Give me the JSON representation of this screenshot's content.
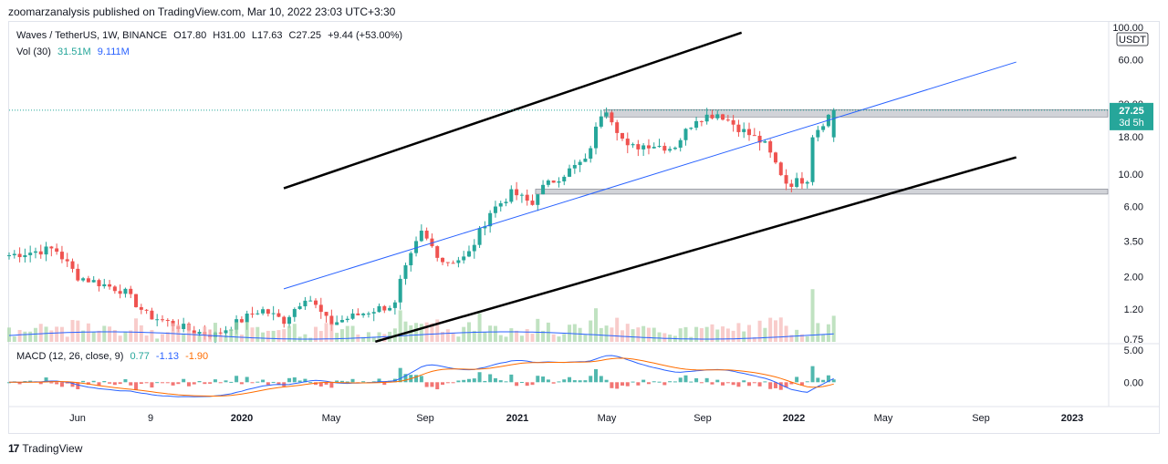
{
  "header": {
    "published": "zoomarzanalysis published on TradingView.com, Mar 10, 2022 23:03 UTC+3:30"
  },
  "legend": {
    "symbol": "Waves / TetherUS, 1W, BINANCE",
    "open": "O17.80",
    "high": "H31.00",
    "low": "L17.63",
    "close": "C27.25",
    "change": "+9.44 (+53.00%)",
    "vol_label": "Vol (30)",
    "vol_value": "31.51M",
    "vol_ma": "9.111M",
    "macd_label": "MACD (12, 26, close, 9)",
    "macd_hist": "0.77",
    "macd_line": "-1.13",
    "macd_signal": "-1.90"
  },
  "footer": {
    "brand": "TradingView"
  },
  "colors": {
    "up": "#26a69a",
    "down": "#ef5350",
    "ma": "#2962ff",
    "signal": "#ff6d00",
    "channel": "#000000",
    "zone": "#b2b5be"
  },
  "chart_data": {
    "type": "candlestick",
    "title": "Waves / TetherUS, 1W, BINANCE",
    "scale": "log",
    "price_axis": {
      "unit": "USDT",
      "ticks": [
        100.0,
        60.0,
        30.0,
        18.0,
        10.0,
        6.0,
        3.5,
        2.0,
        1.2,
        0.75
      ],
      "tick_labels": [
        "100.00",
        "60.00",
        "30.00",
        "18.00",
        "10.00",
        "6.00",
        "3.50",
        "2.00",
        "1.20",
        "0.75"
      ]
    },
    "macd_axis": {
      "ticks": [
        5.0,
        0.0
      ],
      "tick_labels": [
        "5.00",
        "0.00"
      ],
      "range": [
        -3.5,
        5
      ]
    },
    "time_axis": {
      "labels": [
        "Jun",
        "9",
        "2020",
        "May",
        "Sep",
        "2021",
        "May",
        "Sep",
        "2022",
        "May",
        "Sep",
        "2023"
      ],
      "start": "2019-03",
      "end": "2023-03"
    },
    "last_price": {
      "value": 27.25,
      "label": "27.25",
      "countdown": "3d 5h"
    },
    "anchors": [
      {
        "date": "2019-03",
        "price": 2.8
      },
      {
        "date": "2019-05",
        "price": 3.1
      },
      {
        "date": "2019-06",
        "price": 2.0
      },
      {
        "date": "2019-08",
        "price": 1.6
      },
      {
        "date": "2019-09",
        "price": 1.1
      },
      {
        "date": "2019-11",
        "price": 0.85
      },
      {
        "date": "2019-12",
        "price": 0.8
      },
      {
        "date": "2020-02",
        "price": 1.2
      },
      {
        "date": "2020-03",
        "price": 1.0
      },
      {
        "date": "2020-04",
        "price": 1.5
      },
      {
        "date": "2020-05",
        "price": 0.95
      },
      {
        "date": "2020-07",
        "price": 1.2
      },
      {
        "date": "2020-08",
        "price": 1.3
      },
      {
        "date": "2020-08",
        "price": 1.7
      },
      {
        "date": "2020-09",
        "price": 4.0
      },
      {
        "date": "2020-10",
        "price": 2.5
      },
      {
        "date": "2020-11",
        "price": 2.7
      },
      {
        "date": "2020-12",
        "price": 5.5
      },
      {
        "date": "2021-01",
        "price": 7.5
      },
      {
        "date": "2021-02",
        "price": 6.0
      },
      {
        "date": "2021-02",
        "price": 7.5
      },
      {
        "date": "2021-04",
        "price": 12.0
      },
      {
        "date": "2021-04",
        "price": 10.0
      },
      {
        "date": "2021-05",
        "price": 30.0
      },
      {
        "date": "2021-06",
        "price": 15.0
      },
      {
        "date": "2021-07",
        "price": 16.0
      },
      {
        "date": "2021-08",
        "price": 15.0
      },
      {
        "date": "2021-09",
        "price": 24.0
      },
      {
        "date": "2021-10",
        "price": 26.0
      },
      {
        "date": "2021-11",
        "price": 20.0
      },
      {
        "date": "2021-12",
        "price": 16.0
      },
      {
        "date": "2022-01",
        "price": 8.5
      },
      {
        "date": "2022-02",
        "price": 9.5
      },
      {
        "date": "2022-02",
        "price": 17.8
      },
      {
        "date": "2022-03",
        "price": 27.25
      }
    ],
    "resistance_zone": {
      "from": 24.5,
      "to": 27.5,
      "start": "2021-05"
    },
    "support_zone": {
      "from": 7.3,
      "to": 7.9,
      "start": "2021-02"
    },
    "channel_upper": [
      {
        "date": "2020-03",
        "price": 8.0
      },
      {
        "date": "2021-11",
        "price": 92.0
      }
    ],
    "channel_lower": [
      {
        "date": "2020-07",
        "price": 0.72
      },
      {
        "date": "2022-11",
        "price": 13.0
      }
    ],
    "trend_line": [
      {
        "date": "2020-03",
        "price": 1.65
      },
      {
        "date": "2022-11",
        "price": 58.0
      }
    ]
  }
}
